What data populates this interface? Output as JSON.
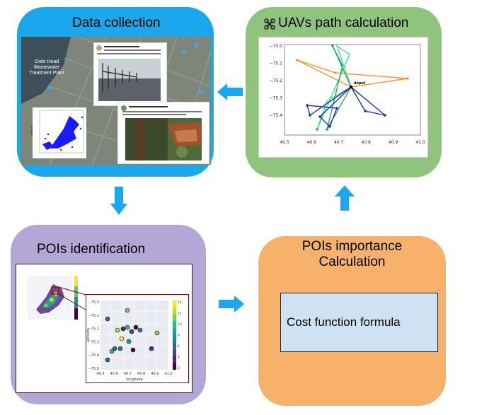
{
  "colors": {
    "data_collection": "#1aa7ec",
    "uav_path": "#90c47c",
    "pois_identification": "#b4a7d6",
    "pois_importance": "#f6b26b",
    "formula_box": "#cfe2f3",
    "arrow": "#1aa7ec"
  },
  "boxes": {
    "data_collection": {
      "title": "Data collection"
    },
    "uav_path": {
      "title": "UAVs path calculation",
      "icon": "drone-icon"
    },
    "pois_identification": {
      "title": "POIs identification"
    },
    "pois_importance": {
      "title_line1": "POIs importance",
      "title_line2": "Calculation",
      "formula": "Cost function formula"
    }
  },
  "map_screenshot": {
    "map_label": "Owls Head Wastewater Treatment Plant",
    "scatter_ylabel": "latitude"
  },
  "uav_plot": {
    "depot_label": "depot",
    "x_ticks": [
      "40.5",
      "40.6",
      "40.7",
      "40.8",
      "40.9",
      "41.0"
    ],
    "y_ticks": [
      "−75.0",
      "−75.1",
      "−75.2",
      "−75.3",
      "−75.4"
    ]
  },
  "pois_plot": {
    "x_ticks": [
      "40.5",
      "40.6",
      "40.7",
      "40.8",
      "40.9",
      "41.0"
    ],
    "y_ticks": [
      "−75.0",
      "−75.1",
      "−75.2",
      "−75.3",
      "−75.4",
      "−75.5"
    ],
    "colorbar_ticks": [
      "14",
      "12",
      "10",
      "8",
      "6",
      "4",
      "2"
    ],
    "xlabel": "longitude",
    "ylabel": "latitude"
  }
}
